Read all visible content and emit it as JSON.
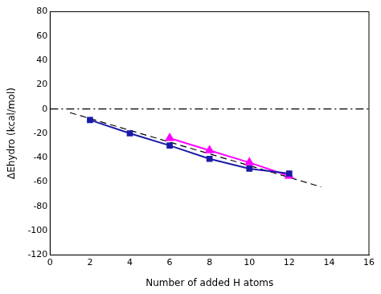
{
  "chart_data": {
    "type": "line",
    "x_label": "Number of added H atoms",
    "y_label": "ΔEhydro (kcal/mol)",
    "xlim": [
      0,
      16
    ],
    "xticks": [
      0,
      2,
      4,
      6,
      8,
      10,
      12,
      14,
      16
    ],
    "ylim": [
      -120,
      80
    ],
    "yticks": [
      -120,
      -100,
      -80,
      -60,
      -40,
      -20,
      0,
      20,
      40,
      60,
      80
    ],
    "grid": false,
    "series": [
      {
        "color": "#1a1aa8",
        "marker": "square",
        "line_style": "solid",
        "x": [
          2,
          4,
          6,
          8,
          10,
          12
        ],
        "values": [
          -9,
          -20,
          -30,
          -41,
          -49,
          -53
        ]
      },
      {
        "color": "#ff00ff",
        "marker": "triangle",
        "line_style": "solid",
        "x": [
          6,
          8,
          10,
          12
        ],
        "values": [
          -24,
          -34,
          -44,
          -55
        ]
      },
      {
        "color": "#000000",
        "marker": "none",
        "line_style": "dashed",
        "x": [
          1,
          13.6
        ],
        "values": [
          -3,
          -64
        ]
      },
      {
        "color": "#000000",
        "marker": "none",
        "line_style": "dashdot",
        "x": [
          0,
          16
        ],
        "values": [
          0,
          0
        ]
      }
    ]
  }
}
